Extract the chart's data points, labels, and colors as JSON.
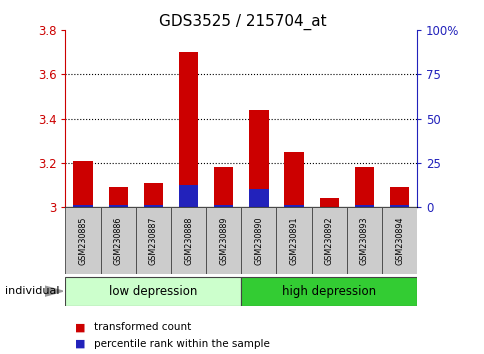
{
  "title": "GDS3525 / 215704_at",
  "samples": [
    "GSM230885",
    "GSM230886",
    "GSM230887",
    "GSM230888",
    "GSM230889",
    "GSM230890",
    "GSM230891",
    "GSM230892",
    "GSM230893",
    "GSM230894"
  ],
  "red_values": [
    3.21,
    3.09,
    3.11,
    3.7,
    3.18,
    3.44,
    3.25,
    3.04,
    3.18,
    3.09
  ],
  "blue_values": [
    3.01,
    3.01,
    3.01,
    3.1,
    3.01,
    3.08,
    3.01,
    3.0,
    3.01,
    3.01
  ],
  "y_min": 3.0,
  "y_max": 3.8,
  "y_ticks_left": [
    3.0,
    3.2,
    3.4,
    3.6,
    3.8
  ],
  "y_ticks_left_labels": [
    "3",
    "3.2",
    "3.4",
    "3.6",
    "3.8"
  ],
  "y_ticks_right_pct": [
    0,
    25,
    50,
    75,
    100
  ],
  "y_ticks_right_labels": [
    "0",
    "25",
    "50",
    "75",
    "100%"
  ],
  "bar_color_red": "#cc0000",
  "bar_color_blue": "#2222bb",
  "groups": [
    {
      "label": "low depression",
      "start": 0,
      "end": 4,
      "color": "#ccffcc"
    },
    {
      "label": "high depression",
      "start": 5,
      "end": 9,
      "color": "#33cc33"
    }
  ],
  "legend_red": "transformed count",
  "legend_blue": "percentile rank within the sample",
  "individual_label": "individual",
  "left_tick_color": "#cc0000",
  "right_tick_color": "#2222bb",
  "title_fontsize": 11,
  "tick_label_fontsize": 8.5,
  "bar_width": 0.55,
  "box_color": "#cccccc"
}
